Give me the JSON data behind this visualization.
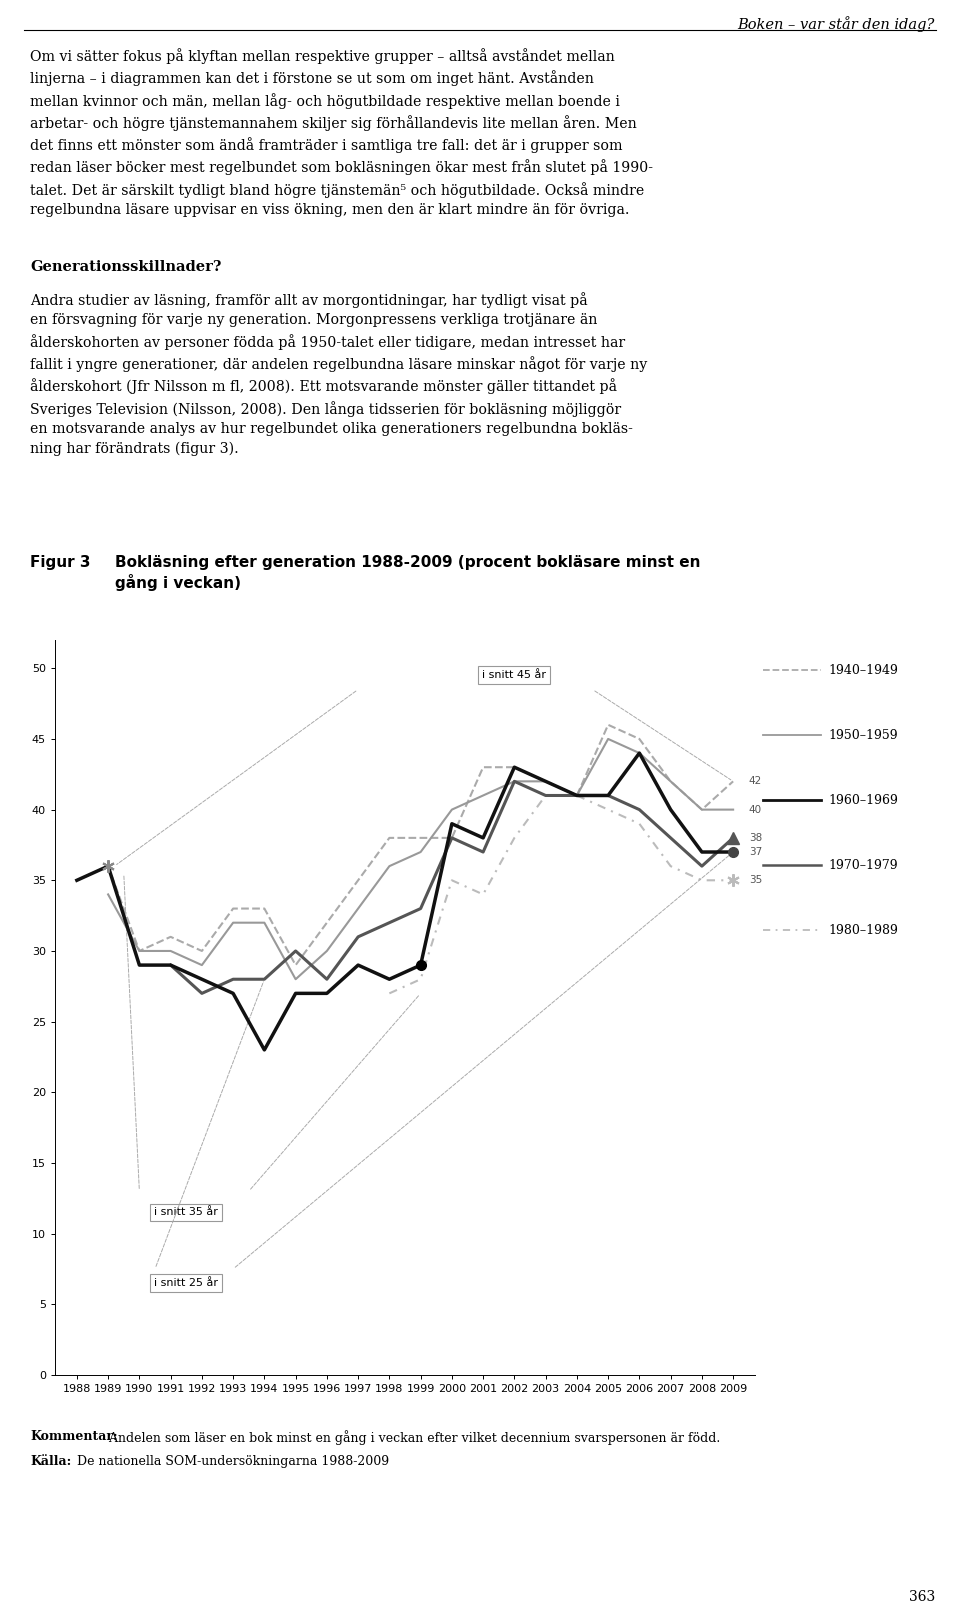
{
  "page_header": "Boken – var står den idag?",
  "fig_label": "Figur 3",
  "fig_title_line1": "Bokläsning efter generation 1988-2009 (procent bokläsare minst en",
  "fig_title_line2": "gång i veckan)",
  "years": [
    1988,
    1989,
    1990,
    1991,
    1992,
    1993,
    1994,
    1995,
    1996,
    1997,
    1998,
    1999,
    2000,
    2001,
    2002,
    2003,
    2004,
    2005,
    2006,
    2007,
    2008,
    2009
  ],
  "s_1940": [
    35,
    36,
    30,
    31,
    30,
    33,
    33,
    29,
    32,
    35,
    38,
    38,
    38,
    43,
    43,
    42,
    41,
    46,
    45,
    42,
    40,
    42
  ],
  "s_1950": [
    null,
    34,
    30,
    30,
    29,
    32,
    32,
    28,
    30,
    33,
    36,
    37,
    40,
    41,
    42,
    42,
    41,
    45,
    44,
    42,
    40,
    40
  ],
  "s_1960": [
    35,
    36,
    29,
    29,
    28,
    27,
    23,
    27,
    27,
    29,
    28,
    29,
    39,
    38,
    43,
    42,
    41,
    41,
    44,
    40,
    37,
    37
  ],
  "s_1970": [
    null,
    null,
    null,
    29,
    27,
    28,
    28,
    30,
    28,
    31,
    32,
    33,
    38,
    37,
    42,
    41,
    41,
    41,
    40,
    38,
    36,
    38
  ],
  "s_1980": [
    null,
    null,
    null,
    null,
    null,
    null,
    null,
    null,
    null,
    null,
    27,
    28,
    35,
    34,
    38,
    41,
    41,
    40,
    39,
    36,
    35,
    35
  ],
  "c_1940": "#aaaaaa",
  "c_1950": "#999999",
  "c_1960": "#111111",
  "c_1970": "#555555",
  "c_1980": "#bbbbbb",
  "ylim": [
    0,
    52
  ],
  "yticks": [
    0,
    5,
    10,
    15,
    20,
    25,
    30,
    35,
    40,
    45,
    50
  ],
  "legend_labels": [
    "1940–1949",
    "1950–1959",
    "1960–1969",
    "1970–1979",
    "1980–1989"
  ],
  "end_labels": [
    "42",
    "40",
    "38",
    "37",
    "35"
  ],
  "end_values": [
    42,
    40,
    38,
    37,
    35
  ],
  "comment_bold": "Kommentar:",
  "comment_text": " Andelen som läser en bok minst en gång i veckan efter vilket decennium svarspersonen är född.",
  "source_bold": "Källa:",
  "source_text": " De nationella SOM-undersökningarna 1988-2009",
  "page_number": "363",
  "body1_lines": [
    "Om vi sätter fokus på klyftan mellan respektive grupper – alltså avståndet mellan",
    "linjerna – i diagrammen kan det i förstone se ut som om inget hänt. Avstånden",
    "mellan kvinnor och män, mellan låg- och högutbildade respektive mellan boende i",
    "arbetar- och högre tjänstemannahem skiljer sig förhållandevis lite mellan åren. Men",
    "det finns ett mönster som ändå framträder i samtliga tre fall: det är i grupper som",
    "redan läser böcker mest regelbundet som bokläsningen ökar mest från slutet på 1990-",
    "talet. Det är särskilt tydligt bland högre tjänstemän⁵ och högutbildade. Också mindre",
    "regelbundna läsare uppvisar en viss ökning, men den är klart mindre än för övriga."
  ],
  "section_header": "Generationsskillnader?",
  "body2_lines": [
    "Andra studier av läsning, framför allt av morgontidningar, har tydligt visat på",
    "en försvagning för varje ny generation. Morgonpressens verkliga trotjänare än",
    "ålderskohorten av personer födda på 1950-talet eller tidigare, medan intresset har",
    "fallit i yngre generationer, där andelen regelbundna läsare minskar något för varje ny",
    "ålderskohort (Jfr Nilsson m fl, 2008). Ett motsvarande mönster gäller tittandet på",
    "Sveriges Television (Nilsson, 2008). Den långa tidsserien för bokläsning möjliggör",
    "en motsvarande analys av hur regelbundet olika generationers regelbundna bokläs-",
    "ning har förändrats (figur 3)."
  ]
}
